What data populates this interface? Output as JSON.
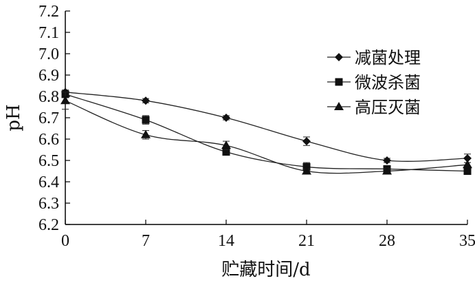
{
  "chart_data": {
    "type": "line",
    "title": "",
    "xlabel": "贮藏时间/d",
    "ylabel": "pH",
    "x": [
      0,
      7,
      14,
      21,
      28,
      35
    ],
    "xticks": [
      "0",
      "7",
      "14",
      "21",
      "28",
      "35"
    ],
    "yticks": [
      "6.2",
      "6.3",
      "6.4",
      "6.5",
      "6.6",
      "6.7",
      "6.8",
      "6.9",
      "7.0",
      "7.1",
      "7.2"
    ],
    "ylim": [
      6.2,
      7.2
    ],
    "xlim": [
      0,
      35
    ],
    "grid": false,
    "legend_position": "upper-right",
    "series": [
      {
        "name": "减菌处理",
        "marker": "diamond",
        "values": [
          6.82,
          6.78,
          6.7,
          6.59,
          6.5,
          6.51
        ],
        "errors": [
          0.01,
          0.01,
          0.01,
          0.02,
          0.01,
          0.02
        ]
      },
      {
        "name": "微波杀菌",
        "marker": "square",
        "values": [
          6.81,
          6.69,
          6.54,
          6.47,
          6.46,
          6.45
        ],
        "errors": [
          0.01,
          0.02,
          0.01,
          0.02,
          0.01,
          0.01
        ]
      },
      {
        "name": "高压灭菌",
        "marker": "triangle",
        "values": [
          6.78,
          6.62,
          6.57,
          6.45,
          6.45,
          6.48
        ],
        "errors": [
          0.04,
          0.02,
          0.02,
          0.01,
          0.01,
          0.01
        ]
      }
    ]
  }
}
